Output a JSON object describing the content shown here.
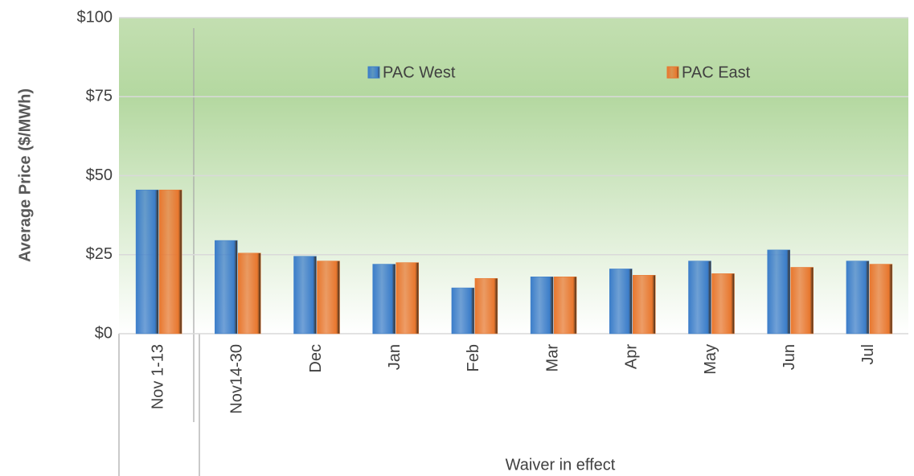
{
  "chart_data": {
    "type": "bar",
    "y_label": "Average Price ($/MWh)",
    "group_label": "Waiver in effect",
    "categories": [
      "Nov 1-13",
      "Nov14-30",
      "Dec",
      "Jan",
      "Feb",
      "Mar",
      "Apr",
      "May",
      "Jun",
      "Jul"
    ],
    "series": [
      {
        "name": "PAC West",
        "color": "#3b7dc9",
        "values": [
          45.5,
          29.5,
          24.5,
          22,
          14.5,
          18,
          20.5,
          23,
          26.5,
          23
        ]
      },
      {
        "name": "PAC East",
        "color": "#e8772e",
        "values": [
          45.5,
          25.5,
          23,
          22.5,
          17.5,
          18,
          18.5,
          19,
          21,
          22
        ]
      }
    ],
    "ylim": [
      0,
      100
    ],
    "yticks": [
      {
        "value": 0,
        "label": "$0"
      },
      {
        "value": 25,
        "label": "$25"
      },
      {
        "value": 50,
        "label": "$50"
      },
      {
        "value": 75,
        "label": "$75"
      },
      {
        "value": 100,
        "label": "$100"
      }
    ],
    "grid": true,
    "legend": "top"
  }
}
